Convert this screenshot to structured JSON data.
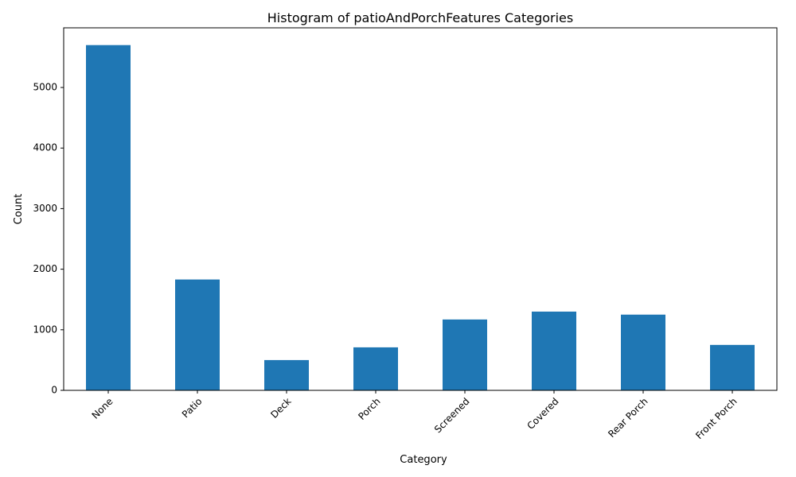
{
  "chart_data": {
    "type": "bar",
    "title": "Histogram of patioAndPorchFeatures Categories",
    "xlabel": "Category",
    "ylabel": "Count",
    "categories": [
      "None",
      "Patio",
      "Deck",
      "Porch",
      "Screened",
      "Covered",
      "Rear Porch",
      "Front Porch"
    ],
    "values": [
      5700,
      1830,
      500,
      710,
      1170,
      1300,
      1250,
      750
    ],
    "ylim": [
      0,
      5985
    ],
    "yticks": [
      0,
      1000,
      2000,
      3000,
      4000,
      5000
    ],
    "ytick_labels": [
      "0",
      "1000",
      "2000",
      "3000",
      "4000",
      "5000"
    ],
    "grid": false,
    "legend": "none",
    "bar_color": "#1f77b4",
    "xtick_rotation": "45 degrees, right-aligned"
  }
}
